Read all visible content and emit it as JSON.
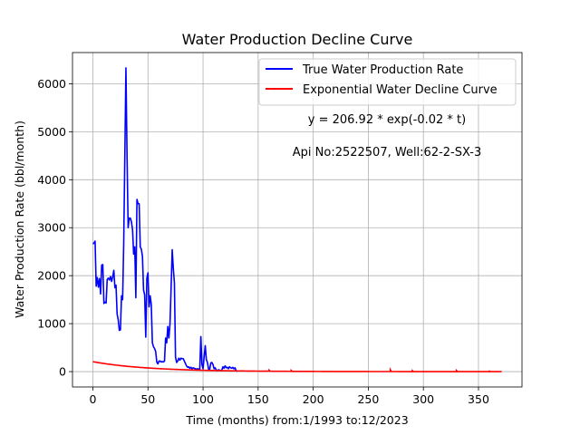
{
  "chart_data": {
    "type": "line",
    "title": "Water Production Decline Curve",
    "xlabel": "Time (months) from:1/1993 to:12/2023",
    "ylabel": "Water Production Rate (bbl/month)",
    "xlim": [
      -18.5,
      389.5
    ],
    "ylim": [
      -320,
      6650
    ],
    "xticks": [
      0,
      50,
      100,
      150,
      200,
      250,
      300,
      350
    ],
    "yticks": [
      0,
      1000,
      2000,
      3000,
      4000,
      5000,
      6000
    ],
    "grid": true,
    "legend_position": "upper right",
    "annotations": [
      "y = 206.92 * exp(-0.02 * t)",
      "Api No:2522507, Well:62-2-SX-3"
    ],
    "series": [
      {
        "name": "True Water Production Rate",
        "color": "#0000ff",
        "points": [
          [
            0,
            2660
          ],
          [
            1,
            2680
          ],
          [
            2,
            2720
          ],
          [
            3,
            1780
          ],
          [
            4,
            1960
          ],
          [
            5,
            1760
          ],
          [
            6,
            1940
          ],
          [
            7,
            1620
          ],
          [
            8,
            2220
          ],
          [
            9,
            2230
          ],
          [
            10,
            1420
          ],
          [
            11,
            1450
          ],
          [
            12,
            1430
          ],
          [
            13,
            1920
          ],
          [
            14,
            1950
          ],
          [
            15,
            1910
          ],
          [
            16,
            1980
          ],
          [
            17,
            1880
          ],
          [
            18,
            1980
          ],
          [
            19,
            2110
          ],
          [
            20,
            1750
          ],
          [
            21,
            1800
          ],
          [
            22,
            1200
          ],
          [
            23,
            1080
          ],
          [
            24,
            860
          ],
          [
            25,
            870
          ],
          [
            26,
            1580
          ],
          [
            27,
            1500
          ],
          [
            28,
            2700
          ],
          [
            29,
            4500
          ],
          [
            30,
            6330
          ],
          [
            31,
            4500
          ],
          [
            32,
            3000
          ],
          [
            33,
            3200
          ],
          [
            34,
            3200
          ],
          [
            35,
            3120
          ],
          [
            36,
            2960
          ],
          [
            37,
            2450
          ],
          [
            38,
            2600
          ],
          [
            39,
            1540
          ],
          [
            40,
            3590
          ],
          [
            41,
            3500
          ],
          [
            42,
            3500
          ],
          [
            43,
            2600
          ],
          [
            44,
            2550
          ],
          [
            45,
            2400
          ],
          [
            46,
            1700
          ],
          [
            47,
            1600
          ],
          [
            48,
            720
          ],
          [
            49,
            1950
          ],
          [
            50,
            2060
          ],
          [
            51,
            1350
          ],
          [
            52,
            1580
          ],
          [
            53,
            1400
          ],
          [
            54,
            600
          ],
          [
            55,
            520
          ],
          [
            56,
            480
          ],
          [
            57,
            420
          ],
          [
            58,
            200
          ],
          [
            59,
            160
          ],
          [
            60,
            220
          ],
          [
            61,
            220
          ],
          [
            62,
            200
          ],
          [
            63,
            210
          ],
          [
            64,
            200
          ],
          [
            65,
            220
          ],
          [
            66,
            700
          ],
          [
            67,
            600
          ],
          [
            68,
            940
          ],
          [
            69,
            700
          ],
          [
            70,
            1000
          ],
          [
            71,
            1750
          ],
          [
            72,
            2540
          ],
          [
            73,
            2150
          ],
          [
            74,
            1850
          ],
          [
            75,
            300
          ],
          [
            76,
            190
          ],
          [
            77,
            220
          ],
          [
            78,
            280
          ],
          [
            79,
            240
          ],
          [
            80,
            280
          ],
          [
            81,
            270
          ],
          [
            82,
            270
          ],
          [
            83,
            220
          ],
          [
            84,
            170
          ],
          [
            85,
            120
          ],
          [
            86,
            90
          ],
          [
            87,
            100
          ],
          [
            88,
            70
          ],
          [
            89,
            90
          ],
          [
            90,
            60
          ],
          [
            91,
            80
          ],
          [
            92,
            70
          ],
          [
            93,
            60
          ],
          [
            94,
            50
          ],
          [
            95,
            60
          ],
          [
            96,
            50
          ],
          [
            97,
            40
          ],
          [
            98,
            730
          ],
          [
            99,
            150
          ],
          [
            100,
            60
          ],
          [
            101,
            310
          ],
          [
            102,
            540
          ],
          [
            103,
            250
          ],
          [
            104,
            190
          ],
          [
            105,
            50
          ],
          [
            106,
            40
          ],
          [
            107,
            180
          ],
          [
            108,
            190
          ],
          [
            109,
            150
          ],
          [
            110,
            60
          ],
          [
            111,
            80
          ],
          [
            112,
            30
          ],
          [
            113,
            20
          ],
          [
            114,
            40
          ],
          [
            115,
            30
          ],
          [
            116,
            20
          ],
          [
            117,
            30
          ],
          [
            118,
            100
          ],
          [
            119,
            70
          ],
          [
            120,
            120
          ],
          [
            121,
            80
          ],
          [
            122,
            90
          ],
          [
            123,
            60
          ],
          [
            124,
            100
          ],
          [
            125,
            80
          ],
          [
            126,
            70
          ],
          [
            127,
            90
          ],
          [
            128,
            60
          ],
          [
            129,
            80
          ],
          [
            130,
            20
          ],
          [
            131,
            0
          ]
        ]
      },
      {
        "name": "Exponential Water Decline Curve",
        "color": "#ff0000",
        "t_max": 371,
        "extra_points": [
          [
            160,
            30
          ],
          [
            180,
            25
          ],
          [
            270,
            40
          ],
          [
            290,
            20
          ],
          [
            330,
            25
          ],
          [
            360,
            10
          ]
        ]
      }
    ]
  }
}
